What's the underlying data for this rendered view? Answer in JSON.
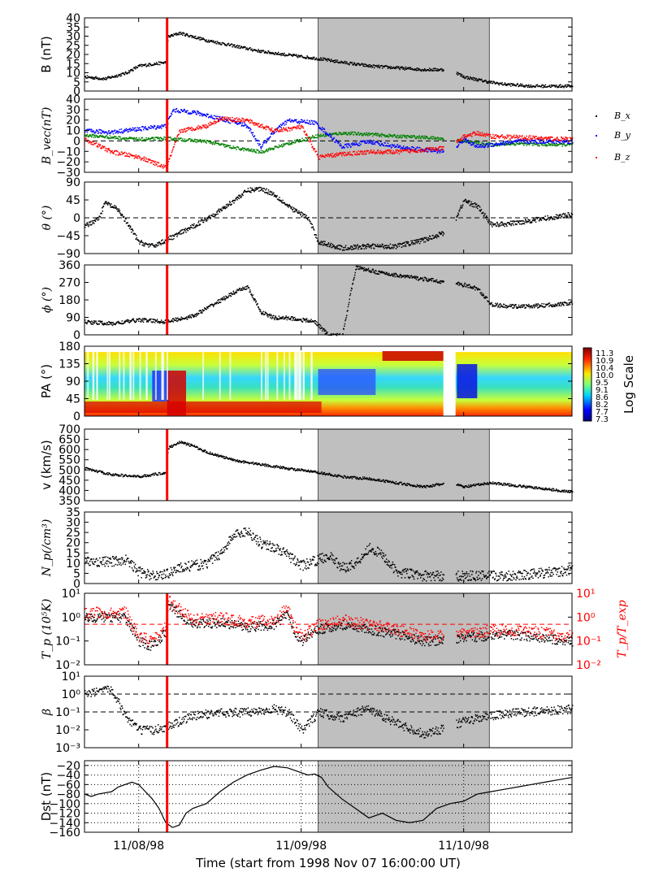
{
  "figure": {
    "xlabel": "Time (start from 1998 Nov 07 16:00:00 UT)",
    "xticks": [
      "11/08/98",
      "11/09/98",
      "11/10/98"
    ],
    "x_range_hours": [
      0,
      72
    ],
    "xtick_hours": [
      8,
      32,
      56
    ],
    "event_line_hour": 12.2,
    "shaded_interval_hours": [
      34.5,
      59.8
    ],
    "colors": {
      "event_line": "#ff0000",
      "shade": "#bfbfbf",
      "bx": "#000000",
      "by": "#0000ff",
      "bz": "#ff0000",
      "bvec_x_line": "#008000"
    }
  },
  "panels": {
    "b": {
      "ylabel": "B (nT)",
      "ylim": [
        0,
        40
      ],
      "yticks": [
        "40",
        "35",
        "30",
        "25",
        "20",
        "15",
        "10",
        "5",
        "0"
      ]
    },
    "bvec": {
      "ylabel": "B_vec(nT)",
      "ylim": [
        -30,
        40
      ],
      "yticks": [
        "40",
        "30",
        "20",
        "10",
        "0",
        "−10",
        "−20",
        "−30"
      ],
      "legend": [
        "B_x",
        "B_y",
        "B_z"
      ]
    },
    "theta": {
      "ylabel": "θ (°)",
      "ylim": [
        -90,
        90
      ],
      "yticks": [
        "90",
        "45",
        "0",
        "−45",
        "−90"
      ]
    },
    "phi": {
      "ylabel": "ϕ (°)",
      "ylim": [
        0,
        360
      ],
      "yticks": [
        "360",
        "270",
        "180",
        "90",
        "0"
      ]
    },
    "pa": {
      "ylabel": "PA (°)",
      "ylim": [
        0,
        180
      ],
      "yticks": [
        "180",
        "135",
        "90",
        "45",
        "0"
      ],
      "colorbar_label": "Log Scale",
      "colorbar_ticks": [
        "11.3",
        "10.9",
        "10.4",
        "10.0",
        "9.5",
        "9.1",
        "8.6",
        "8.2",
        "7.7",
        "7.3"
      ]
    },
    "v": {
      "ylabel": "v (km/s)",
      "ylim": [
        350,
        700
      ],
      "yticks": [
        "700",
        "650",
        "600",
        "550",
        "500",
        "450",
        "400",
        "350"
      ]
    },
    "np": {
      "ylabel": "N_p(/cm³)",
      "ylim": [
        0,
        35
      ],
      "yticks": [
        "35",
        "30",
        "25",
        "20",
        "15",
        "10",
        "5",
        "0"
      ]
    },
    "tp": {
      "ylabel": "T_p (10⁵K)",
      "ylabel_right": "T_p/T_exp",
      "yticks": [
        "10¹",
        "10⁰",
        "10⁻¹",
        "10⁻²"
      ],
      "yticks_right": [
        "10¹",
        "10⁰",
        "10⁻¹",
        "10⁻²"
      ]
    },
    "beta": {
      "ylabel": "β",
      "yticks": [
        "10¹",
        "10⁰",
        "10⁻¹",
        "10⁻²",
        "10⁻³"
      ]
    },
    "dst": {
      "ylabel": "Dst (nT)",
      "ylim": [
        -160,
        -10
      ],
      "yticks": [
        "−20",
        "−40",
        "−60",
        "−80",
        "−100",
        "−120",
        "−140",
        "−160"
      ]
    }
  },
  "chart_data": {
    "type": "line",
    "x_units": "hours since 1998 Nov 07 16:00 UT",
    "series": [
      {
        "name": "B",
        "panel": "b",
        "x": [
          0,
          3,
          6,
          8,
          10,
          12,
          12.3,
          14,
          18,
          22,
          26,
          30,
          34.5,
          38,
          42,
          46,
          50,
          54,
          56,
          60,
          62,
          66,
          72
        ],
        "y": [
          8,
          7,
          10,
          14,
          15,
          16,
          30,
          32,
          28,
          25,
          22,
          20,
          18,
          16,
          14,
          13,
          12,
          12,
          8,
          5,
          4,
          3,
          3
        ]
      },
      {
        "name": "B_x",
        "panel": "bvec",
        "x": [
          0,
          4,
          8,
          12,
          14,
          18,
          22,
          26,
          30,
          34,
          38,
          42,
          46,
          50,
          54,
          56,
          60,
          64,
          68,
          72
        ],
        "y": [
          6,
          4,
          2,
          3,
          2,
          0,
          -6,
          -10,
          -2,
          5,
          8,
          7,
          5,
          4,
          2,
          0,
          -3,
          -2,
          -3,
          -3
        ]
      },
      {
        "name": "B_y",
        "panel": "bvec",
        "x": [
          0,
          4,
          8,
          12,
          13,
          16,
          20,
          24,
          26,
          28,
          30,
          34,
          38,
          42,
          46,
          50,
          54,
          56,
          58,
          60,
          64,
          68,
          72
        ],
        "y": [
          10,
          9,
          12,
          15,
          30,
          28,
          22,
          15,
          -5,
          10,
          20,
          18,
          -5,
          0,
          -5,
          -8,
          -10,
          2,
          -5,
          -3,
          0,
          0,
          0
        ]
      },
      {
        "name": "B_z",
        "panel": "bvec",
        "x": [
          0,
          4,
          8,
          12,
          14,
          18,
          20,
          24,
          28,
          32,
          34.5,
          38,
          42,
          46,
          50,
          54,
          56,
          58,
          60,
          64,
          68,
          72
        ],
        "y": [
          2,
          -10,
          -15,
          -25,
          10,
          15,
          22,
          20,
          10,
          14,
          -15,
          -12,
          -10,
          -10,
          -8,
          -6,
          5,
          8,
          5,
          4,
          3,
          2
        ]
      },
      {
        "name": "θ",
        "panel": "theta",
        "x": [
          0,
          2,
          3,
          5,
          8,
          10,
          12,
          16,
          20,
          24,
          26,
          28,
          30,
          33,
          34.5,
          38,
          42,
          46,
          50,
          54,
          56,
          58,
          60,
          62,
          66,
          70,
          72
        ],
        "y": [
          -20,
          0,
          40,
          20,
          -60,
          -70,
          -55,
          -20,
          20,
          70,
          75,
          60,
          30,
          0,
          -60,
          -75,
          -70,
          -70,
          -55,
          -30,
          45,
          30,
          -15,
          -15,
          -5,
          5,
          10
        ]
      },
      {
        "name": "ϕ",
        "panel": "phi",
        "x": [
          0,
          4,
          8,
          12,
          16,
          20,
          22,
          24,
          26,
          28,
          30,
          34,
          36,
          38,
          40,
          44,
          48,
          52,
          54,
          56,
          58,
          60,
          62,
          66,
          70,
          72
        ],
        "y": [
          70,
          60,
          80,
          70,
          100,
          180,
          220,
          250,
          120,
          90,
          90,
          70,
          0,
          0,
          350,
          320,
          300,
          280,
          270,
          260,
          240,
          160,
          150,
          150,
          160,
          165
        ]
      },
      {
        "name": "v",
        "panel": "v",
        "x": [
          0,
          4,
          8,
          12,
          12.3,
          14,
          16,
          18,
          22,
          26,
          30,
          34.5,
          38,
          42,
          46,
          50,
          54,
          56,
          58,
          60,
          64,
          68,
          72
        ],
        "y": [
          510,
          480,
          470,
          490,
          610,
          640,
          620,
          590,
          550,
          530,
          510,
          490,
          470,
          460,
          440,
          420,
          440,
          420,
          430,
          440,
          425,
          410,
          395
        ]
      },
      {
        "name": "N_p",
        "panel": "np",
        "x": [
          0,
          4,
          6,
          8,
          10,
          12,
          14,
          18,
          20,
          22,
          24,
          26,
          28,
          30,
          32,
          34.5,
          36,
          38,
          40,
          42,
          44,
          46,
          50,
          54,
          58,
          60,
          62,
          66,
          70,
          72
        ],
        "y": [
          11,
          11,
          12,
          6,
          4,
          5,
          8,
          10,
          15,
          24,
          26,
          20,
          18,
          14,
          9,
          12,
          14,
          8,
          10,
          18,
          14,
          6,
          4,
          4,
          4,
          4,
          4,
          5,
          6,
          7
        ]
      },
      {
        "name": "Dst",
        "panel": "dst",
        "x": [
          0,
          1,
          2,
          4,
          5,
          6,
          7,
          8,
          9,
          10,
          11,
          12,
          13,
          14,
          15,
          16,
          17,
          18,
          20,
          22,
          24,
          26,
          28,
          30,
          32,
          33,
          34,
          35,
          36,
          38,
          40,
          42,
          44,
          46,
          48,
          50,
          52,
          54,
          56,
          58,
          60,
          62,
          64,
          66,
          68,
          70,
          72
        ],
        "y": [
          -80,
          -85,
          -80,
          -75,
          -65,
          -60,
          -55,
          -60,
          -75,
          -90,
          -110,
          -140,
          -150,
          -145,
          -120,
          -110,
          -105,
          -100,
          -75,
          -55,
          -40,
          -30,
          -22,
          -25,
          -35,
          -40,
          -38,
          -45,
          -65,
          -90,
          -110,
          -130,
          -120,
          -135,
          -140,
          -135,
          -110,
          -100,
          -95,
          -80,
          -75,
          -70,
          -65,
          -60,
          -55,
          -50,
          -45
        ]
      }
    ]
  }
}
